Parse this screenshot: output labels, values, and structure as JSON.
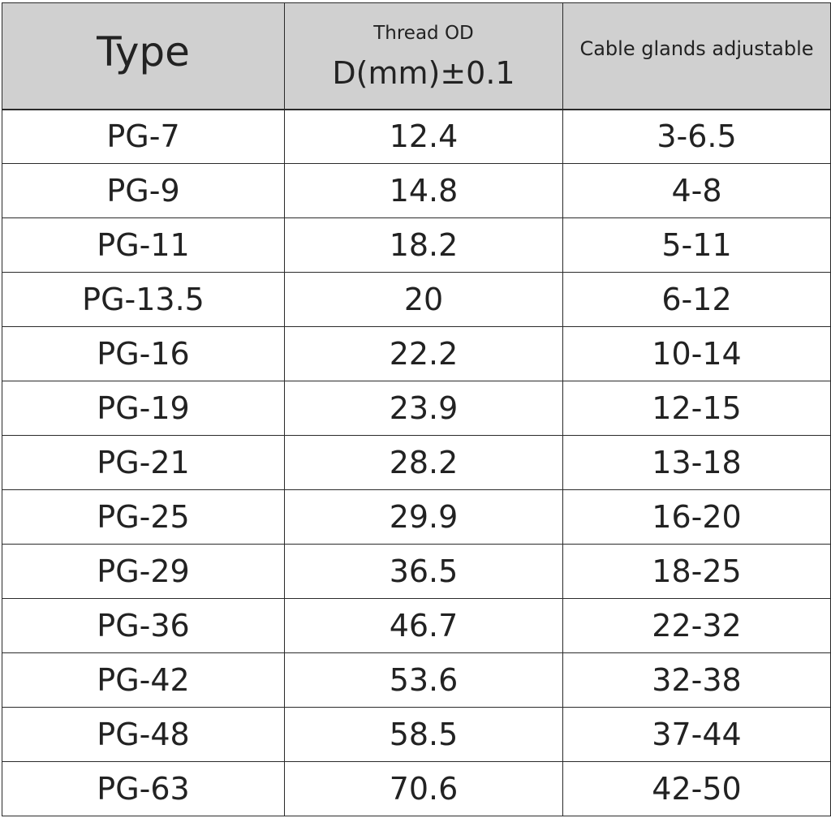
{
  "table": {
    "header": {
      "type": "Type",
      "thread_od": "Thread OD",
      "thread_od_unit": "D(mm)±0.1",
      "cable": "Cable glands adjustable"
    },
    "rows": [
      [
        "PG-7",
        "12.4",
        "3-6.5"
      ],
      [
        "PG-9",
        "14.8",
        "4-8"
      ],
      [
        "PG-11",
        "18.2",
        "5-11"
      ],
      [
        "PG-13.5",
        "20",
        "6-12"
      ],
      [
        "PG-16",
        "22.2",
        "10-14"
      ],
      [
        "PG-19",
        "23.9",
        "12-15"
      ],
      [
        "PG-21",
        "28.2",
        "13-18"
      ],
      [
        "PG-25",
        "29.9",
        "16-20"
      ],
      [
        "PG-29",
        "36.5",
        "18-25"
      ],
      [
        "PG-36",
        "46.7",
        "22-32"
      ],
      [
        "PG-42",
        "53.6",
        "32-38"
      ],
      [
        "PG-48",
        "58.5",
        "37-44"
      ],
      [
        "PG-63",
        "70.6",
        "42-50"
      ]
    ]
  }
}
